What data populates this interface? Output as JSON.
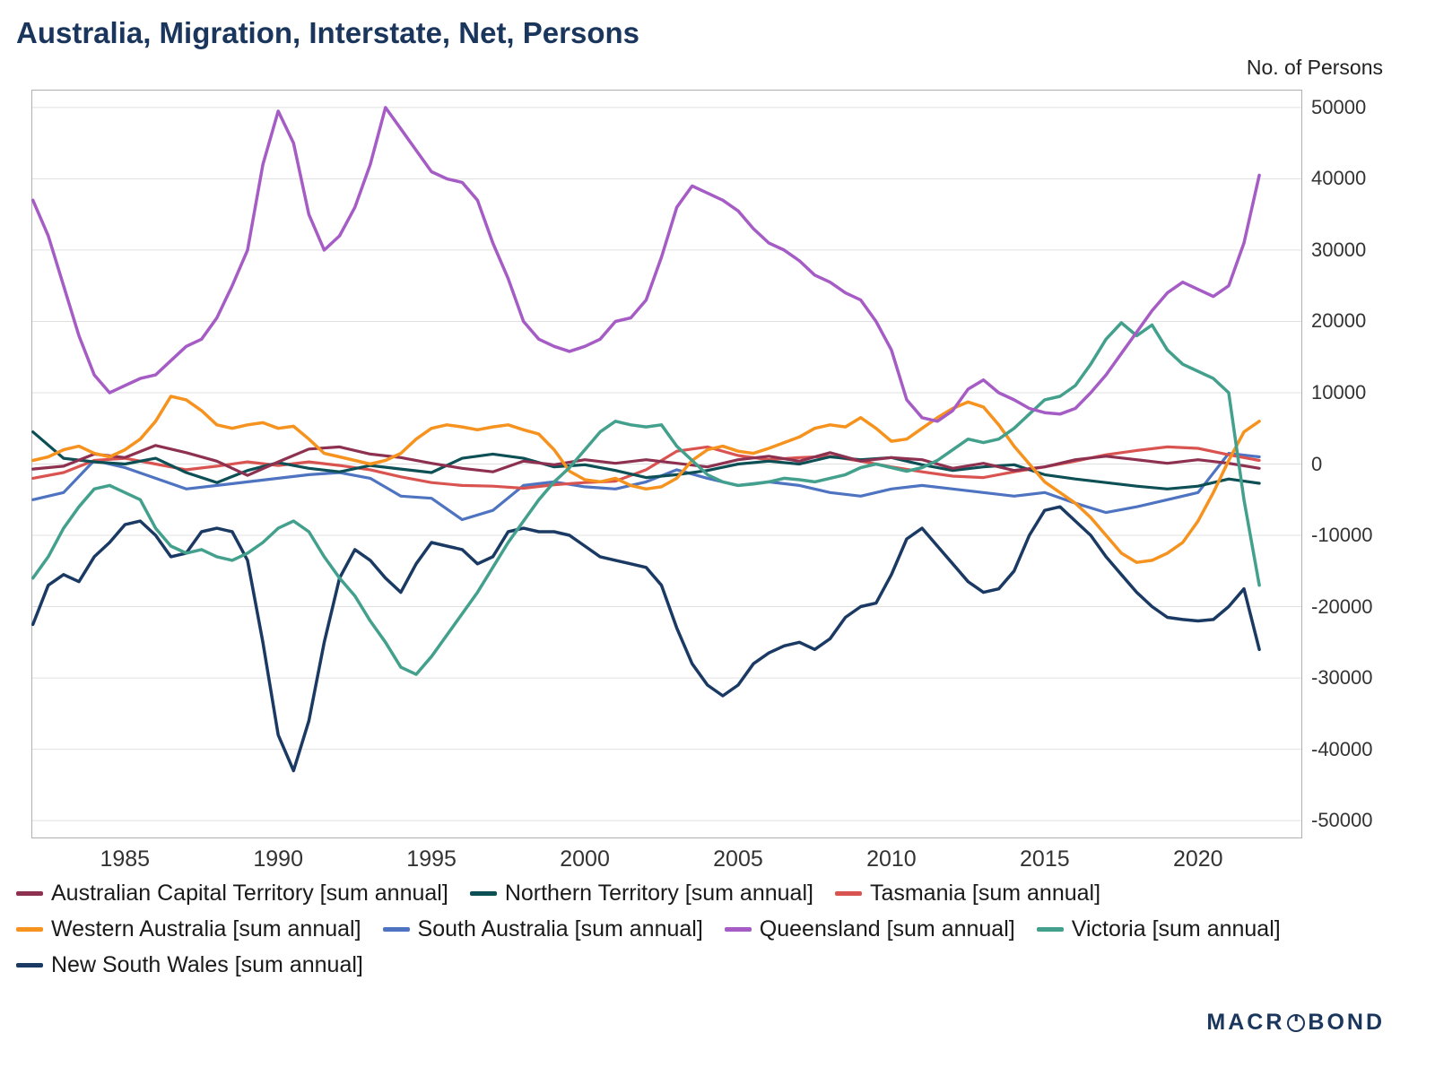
{
  "title": "Australia, Migration, Interstate, Net, Persons",
  "y_axis_title": "No. of Persons",
  "footer": {
    "logo_pre": "MACR",
    "logo_o": "O",
    "logo_post": "BOND"
  },
  "style": {
    "title_color": "#1b365d",
    "grid_color": "#e0e0e0",
    "border_color": "#b0b0b0",
    "tick_label_color": "#333333",
    "legend_text_color": "#1a1a1a"
  },
  "chart_data": {
    "type": "line",
    "title": "Australia, Migration, Interstate, Net, Persons",
    "ylabel": "No. of Persons",
    "xlabel": "",
    "grid": true,
    "legend_position": "bottom",
    "xlim": [
      1981.95,
      2023.4
    ],
    "ylim": [
      -52500,
      52500
    ],
    "x_ticks": [
      1985,
      1990,
      1995,
      2000,
      2005,
      2010,
      2015,
      2020
    ],
    "y_ticks": [
      50000,
      40000,
      30000,
      20000,
      10000,
      0,
      -10000,
      -20000,
      -30000,
      -40000,
      -50000
    ],
    "draw_order": [
      4,
      2,
      1,
      0,
      3,
      7,
      6,
      5
    ],
    "series": [
      {
        "id": "act",
        "name": "Australian Capital Territory [sum annual]",
        "color": "#8e3150",
        "width": 3.2,
        "row": 0,
        "x0": 1982,
        "dx": 1,
        "y": [
          -700,
          -300,
          1400,
          900,
          2600,
          1600,
          400,
          -1600,
          300,
          2100,
          2400,
          1400,
          900,
          100,
          -600,
          -1100,
          400,
          -100,
          600,
          100,
          600,
          100,
          -400,
          600,
          1100,
          400,
          1600,
          400,
          900,
          600,
          -600,
          100,
          -900,
          -400,
          600,
          1100,
          600,
          100,
          600,
          100,
          -600
        ]
      },
      {
        "id": "nt",
        "name": "Northern Territory [sum annual]",
        "color": "#0c4f55",
        "width": 3.2,
        "row": 0,
        "x0": 1982,
        "dx": 1,
        "y": [
          4500,
          800,
          300,
          0,
          800,
          -1200,
          -2600,
          -900,
          200,
          -600,
          -1100,
          -200,
          -700,
          -1200,
          800,
          1400,
          800,
          -400,
          -100,
          -900,
          -1900,
          -1500,
          -900,
          0,
          400,
          0,
          1000,
          600,
          900,
          -100,
          -900,
          -400,
          -100,
          -1500,
          -2100,
          -2600,
          -3100,
          -3500,
          -3100,
          -2100,
          -2700
        ]
      },
      {
        "id": "tas",
        "name": "Tasmania [sum annual]",
        "color": "#d95451",
        "width": 3.2,
        "row": 0,
        "x0": 1982,
        "dx": 1,
        "y": [
          -2000,
          -1200,
          500,
          800,
          0,
          -800,
          -300,
          300,
          -200,
          300,
          -200,
          -800,
          -1800,
          -2600,
          -3000,
          -3100,
          -3400,
          -2900,
          -2600,
          -2400,
          -800,
          1800,
          2400,
          1200,
          600,
          900,
          1100,
          400,
          -400,
          -1100,
          -1700,
          -1900,
          -1100,
          -400,
          400,
          1300,
          1900,
          2400,
          2200,
          1300,
          500
        ]
      },
      {
        "id": "wa",
        "name": "Western Australia [sum annual]",
        "color": "#f6921e",
        "width": 3.5,
        "row": 1,
        "x0": 1982,
        "dx": 0.5,
        "y": [
          500,
          1000,
          2000,
          2500,
          1500,
          1000,
          2000,
          3500,
          6000,
          9500,
          9000,
          7500,
          5500,
          5000,
          5500,
          5800,
          5000,
          5300,
          3500,
          1500,
          1000,
          500,
          0,
          500,
          1500,
          3500,
          5000,
          5500,
          5200,
          4800,
          5200,
          5500,
          4800,
          4200,
          2000,
          -1000,
          -2200,
          -2500,
          -2000,
          -3000,
          -3500,
          -3200,
          -2000,
          500,
          2000,
          2500,
          1800,
          1500,
          2200,
          3000,
          3800,
          5000,
          5500,
          5200,
          6500,
          5000,
          3200,
          3500,
          5000,
          6500,
          7800,
          8700,
          8000,
          5500,
          2500,
          0,
          -2500,
          -4000,
          -5500,
          -7500,
          -10000,
          -12500,
          -13800,
          -13500,
          -12500,
          -11000,
          -8000,
          -4000,
          500,
          4500,
          6000
        ]
      },
      {
        "id": "sa",
        "name": "South Australia [sum annual]",
        "color": "#4e73c1",
        "width": 3.2,
        "row": 1,
        "x0": 1982,
        "dx": 1,
        "y": [
          -5000,
          -4000,
          500,
          -500,
          -2000,
          -3500,
          -3000,
          -2500,
          -2000,
          -1500,
          -1200,
          -2000,
          -4500,
          -4800,
          -7800,
          -6500,
          -3000,
          -2500,
          -3200,
          -3500,
          -2500,
          -800,
          -2000,
          -3000,
          -2500,
          -3000,
          -4000,
          -4500,
          -3500,
          -3000,
          -3500,
          -4000,
          -4500,
          -4000,
          -5500,
          -6800,
          -6000,
          -5000,
          -4000,
          1500,
          1000
        ]
      },
      {
        "id": "qld",
        "name": "Queensland [sum annual]",
        "color": "#a55cc5",
        "width": 3.5,
        "row": 1,
        "x0": 1982,
        "dx": 0.5,
        "y": [
          37000,
          32000,
          25000,
          18000,
          12500,
          10000,
          11000,
          12000,
          12500,
          14500,
          16500,
          17500,
          20500,
          25000,
          30000,
          42000,
          49500,
          45000,
          35000,
          30000,
          32000,
          36000,
          42000,
          50000,
          47000,
          44000,
          41000,
          40000,
          39500,
          37000,
          31000,
          26000,
          20000,
          17500,
          16500,
          15800,
          16500,
          17500,
          20000,
          20500,
          23000,
          29000,
          36000,
          39000,
          38000,
          37000,
          35500,
          33000,
          31000,
          30000,
          28500,
          26500,
          25500,
          24000,
          23000,
          20000,
          16000,
          9000,
          6500,
          6000,
          7500,
          10500,
          11800,
          10000,
          9000,
          7800,
          7200,
          7000,
          7800,
          10000,
          12500,
          15500,
          18500,
          21500,
          24000,
          25500,
          24500,
          23500,
          25000,
          31000,
          40500
        ]
      },
      {
        "id": "vic",
        "name": "Victoria [sum annual]",
        "color": "#42a08d",
        "width": 3.5,
        "row": 1,
        "x0": 1982,
        "dx": 0.5,
        "y": [
          -16000,
          -13000,
          -9000,
          -6000,
          -3500,
          -3000,
          -4000,
          -5000,
          -9000,
          -11500,
          -12500,
          -12000,
          -13000,
          -13500,
          -12500,
          -11000,
          -9000,
          -8000,
          -9500,
          -13000,
          -16000,
          -18500,
          -22000,
          -25000,
          -28500,
          -29500,
          -27000,
          -24000,
          -21000,
          -18000,
          -14500,
          -11000,
          -8000,
          -5000,
          -2500,
          -500,
          2000,
          4500,
          6000,
          5500,
          5200,
          5500,
          2500,
          500,
          -1500,
          -2500,
          -3000,
          -2800,
          -2500,
          -2000,
          -2200,
          -2500,
          -2000,
          -1500,
          -500,
          0,
          -500,
          -1000,
          -500,
          500,
          2000,
          3500,
          3000,
          3500,
          5000,
          7000,
          9000,
          9500,
          11000,
          14000,
          17500,
          19800,
          18000,
          19500,
          16000,
          14000,
          13000,
          12000,
          10000,
          -5000,
          -17000
        ]
      },
      {
        "id": "nsw",
        "name": "New South Wales [sum annual]",
        "color": "#1a3a64",
        "width": 3.5,
        "row": 2,
        "x0": 1982,
        "dx": 0.5,
        "y": [
          -22500,
          -17000,
          -15500,
          -16500,
          -13000,
          -11000,
          -8500,
          -8000,
          -10000,
          -13000,
          -12500,
          -9500,
          -9000,
          -9500,
          -13500,
          -25000,
          -38000,
          -43000,
          -36000,
          -25000,
          -16000,
          -12000,
          -13500,
          -16000,
          -18000,
          -14000,
          -11000,
          -11500,
          -12000,
          -14000,
          -13000,
          -9500,
          -9000,
          -9500,
          -9500,
          -10000,
          -11500,
          -13000,
          -13500,
          -14000,
          -14500,
          -17000,
          -23000,
          -28000,
          -31000,
          -32500,
          -31000,
          -28000,
          -26500,
          -25500,
          -25000,
          -26000,
          -24500,
          -21500,
          -20000,
          -19500,
          -15500,
          -10500,
          -9000,
          -11500,
          -14000,
          -16500,
          -18000,
          -17500,
          -15000,
          -10000,
          -6500,
          -6000,
          -8000,
          -10000,
          -13000,
          -15500,
          -18000,
          -20000,
          -21500,
          -21800,
          -22000,
          -21800,
          -20000,
          -17500,
          -26000
        ]
      }
    ]
  }
}
